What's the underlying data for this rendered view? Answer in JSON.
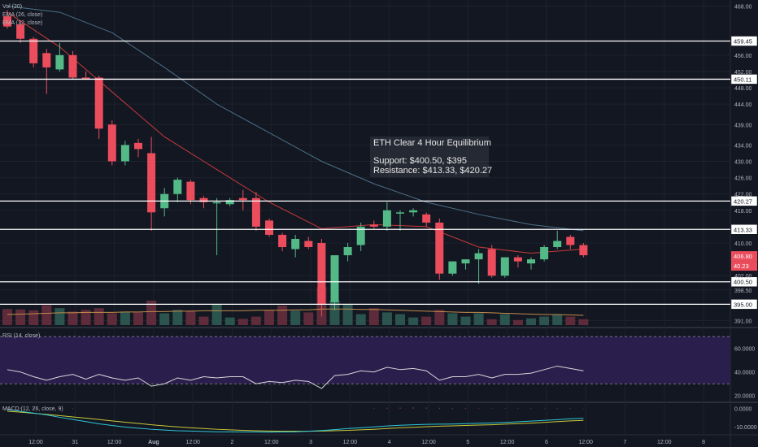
{
  "legends": {
    "vol": "Vol (20)",
    "ema26": "EMA (26, close)",
    "ema12": "EMA (12, close)",
    "rsi": "RSI (14, close)",
    "macd": "MACD (12, 26, close, 9)"
  },
  "annotation": {
    "title": "ETH Clear 4 Hour Equilibrium",
    "support": "Support: $400.50, $395",
    "resistance": "Resistance: $413.33, $420.27"
  },
  "colors": {
    "background": "#131722",
    "up": "#53b987",
    "down": "#eb4d5c",
    "ema12": "#c53a3a",
    "ema26": "#4a6f86",
    "vol_ma": "#c28a4a",
    "rsi_line": "#d8d8d8",
    "rsi_fill": "#2d1f52",
    "macd": "#2ec7d9",
    "signal": "#c9c83b",
    "hline": "#ffffff"
  },
  "chart_data": {
    "type": "candlestick",
    "timeframe": "4h",
    "x_ticks": [
      "12:00",
      "31",
      "12:00",
      "Aug",
      "12:00",
      "2",
      "12:00",
      "3",
      "12:00",
      "4",
      "12:00",
      "5",
      "12:00",
      "6",
      "12:00",
      "7",
      "12:00",
      "8"
    ],
    "price_ticks": [
      "468.00",
      "456.00",
      "452.00",
      "448.00",
      "444.00",
      "439.00",
      "434.00",
      "430.00",
      "426.00",
      "422.00",
      "418.00",
      "410.00",
      "402.00",
      "398.50",
      "391.00"
    ],
    "price_ylim": [
      389.5,
      469.5
    ],
    "candles": [
      {
        "o": 465.5,
        "h": 467.0,
        "l": 462.5,
        "c": 463.0
      },
      {
        "o": 463.5,
        "h": 464.5,
        "l": 459.0,
        "c": 460.0
      },
      {
        "o": 460.0,
        "h": 460.5,
        "l": 453.0,
        "c": 454.0
      },
      {
        "o": 456.5,
        "h": 457.5,
        "l": 446.5,
        "c": 453.0
      },
      {
        "o": 452.5,
        "h": 459.0,
        "l": 452.0,
        "c": 456.0
      },
      {
        "o": 456.0,
        "h": 457.0,
        "l": 450.0,
        "c": 450.5
      },
      {
        "o": 450.5,
        "h": 452.0,
        "l": 450.0,
        "c": 450.0
      },
      {
        "o": 450.5,
        "h": 451.0,
        "l": 435.5,
        "c": 438.0
      },
      {
        "o": 439.0,
        "h": 440.0,
        "l": 429.0,
        "c": 430.0
      },
      {
        "o": 430.0,
        "h": 435.0,
        "l": 429.0,
        "c": 434.0
      },
      {
        "o": 434.5,
        "h": 435.5,
        "l": 431.0,
        "c": 433.0
      },
      {
        "o": 432.0,
        "h": 436.0,
        "l": 413.0,
        "c": 417.5
      },
      {
        "o": 418.5,
        "h": 423.5,
        "l": 416.5,
        "c": 422.0
      },
      {
        "o": 422.0,
        "h": 426.0,
        "l": 420.0,
        "c": 425.5
      },
      {
        "o": 425.0,
        "h": 425.5,
        "l": 419.5,
        "c": 420.5
      },
      {
        "o": 421.0,
        "h": 421.5,
        "l": 418.5,
        "c": 420.0
      },
      {
        "o": 420.0,
        "h": 421.0,
        "l": 407.0,
        "c": 420.0
      },
      {
        "o": 419.5,
        "h": 421.0,
        "l": 419.0,
        "c": 420.5
      },
      {
        "o": 421.0,
        "h": 423.0,
        "l": 418.0,
        "c": 420.5
      },
      {
        "o": 421.0,
        "h": 422.5,
        "l": 413.0,
        "c": 414.0
      },
      {
        "o": 415.5,
        "h": 416.0,
        "l": 411.5,
        "c": 412.0
      },
      {
        "o": 412.0,
        "h": 412.5,
        "l": 408.0,
        "c": 409.0
      },
      {
        "o": 408.5,
        "h": 412.0,
        "l": 406.5,
        "c": 411.0
      },
      {
        "o": 410.5,
        "h": 411.5,
        "l": 408.5,
        "c": 409.0
      },
      {
        "o": 410.0,
        "h": 411.0,
        "l": 392.0,
        "c": 395.0
      },
      {
        "o": 395.5,
        "h": 407.0,
        "l": 393.5,
        "c": 407.0
      },
      {
        "o": 407.0,
        "h": 410.0,
        "l": 405.5,
        "c": 409.0
      },
      {
        "o": 409.5,
        "h": 415.0,
        "l": 408.0,
        "c": 414.0
      },
      {
        "o": 414.5,
        "h": 415.5,
        "l": 413.5,
        "c": 414.0
      },
      {
        "o": 414.0,
        "h": 420.0,
        "l": 413.0,
        "c": 418.0
      },
      {
        "o": 417.5,
        "h": 418.0,
        "l": 413.0,
        "c": 417.5
      },
      {
        "o": 417.5,
        "h": 418.5,
        "l": 416.5,
        "c": 418.0
      },
      {
        "o": 417.0,
        "h": 417.5,
        "l": 414.0,
        "c": 415.0
      },
      {
        "o": 415.0,
        "h": 416.0,
        "l": 401.0,
        "c": 402.5
      },
      {
        "o": 402.5,
        "h": 405.5,
        "l": 402.0,
        "c": 405.5
      },
      {
        "o": 405.0,
        "h": 406.0,
        "l": 403.5,
        "c": 406.0
      },
      {
        "o": 406.0,
        "h": 408.5,
        "l": 400.0,
        "c": 407.5
      },
      {
        "o": 408.5,
        "h": 409.5,
        "l": 401.5,
        "c": 402.0
      },
      {
        "o": 402.0,
        "h": 406.5,
        "l": 401.5,
        "c": 406.5
      },
      {
        "o": 406.5,
        "h": 407.0,
        "l": 404.0,
        "c": 405.5
      },
      {
        "o": 405.0,
        "h": 406.5,
        "l": 403.5,
        "c": 406.0
      },
      {
        "o": 406.0,
        "h": 409.5,
        "l": 405.5,
        "c": 409.0
      },
      {
        "o": 409.0,
        "h": 413.0,
        "l": 408.5,
        "c": 410.5
      },
      {
        "o": 411.5,
        "h": 412.0,
        "l": 408.5,
        "c": 409.5
      },
      {
        "o": 409.5,
        "h": 410.0,
        "l": 406.5,
        "c": 407.0
      }
    ],
    "ema12": [
      [
        0,
        466.5
      ],
      [
        4,
        458.0
      ],
      [
        8,
        447.0
      ],
      [
        12,
        436.0
      ],
      [
        16,
        428.0
      ],
      [
        20,
        420.0
      ],
      [
        24,
        413.5
      ],
      [
        28,
        414.5
      ],
      [
        32,
        414.0
      ],
      [
        36,
        409.0
      ],
      [
        40,
        407.5
      ],
      [
        44,
        408.5
      ]
    ],
    "ema26": [
      [
        0,
        468.0
      ],
      [
        4,
        466.5
      ],
      [
        8,
        461.5
      ],
      [
        12,
        453.0
      ],
      [
        16,
        444.0
      ],
      [
        20,
        437.0
      ],
      [
        24,
        430.0
      ],
      [
        28,
        424.5
      ],
      [
        32,
        420.0
      ],
      [
        36,
        417.0
      ],
      [
        40,
        414.5
      ],
      [
        44,
        413.0
      ]
    ],
    "volume": [
      38,
      37,
      35,
      47,
      40,
      32,
      36,
      40,
      28,
      32,
      30,
      58,
      28,
      36,
      34,
      20,
      48,
      18,
      15,
      20,
      36,
      46,
      34,
      30,
      90,
      58,
      48,
      26,
      40,
      30,
      26,
      18,
      20,
      36,
      28,
      20,
      28,
      14,
      26,
      12,
      16,
      20,
      25,
      20,
      14
    ],
    "volume_ma": [
      25,
      26,
      27,
      28,
      29,
      29,
      30,
      30,
      30,
      31,
      31,
      32,
      32,
      33,
      33,
      34,
      34,
      34,
      34,
      35,
      35,
      35,
      36,
      36,
      38,
      38,
      38,
      37,
      37,
      36,
      35,
      34,
      33,
      32,
      31,
      30,
      30,
      29,
      28,
      27,
      26,
      25,
      25,
      24,
      23
    ],
    "horizontal_levels": [
      {
        "value": 459.45,
        "label": "459.45"
      },
      {
        "value": 450.11,
        "label": "450.11"
      },
      {
        "value": 420.27,
        "label": "420.27"
      },
      {
        "value": 413.33,
        "label": "413.33"
      },
      {
        "value": 400.5,
        "label": "400.50"
      },
      {
        "value": 395.0,
        "label": "395.00"
      }
    ],
    "last_price": {
      "value": 406.8,
      "label": "406.80"
    },
    "last_volume_label": "40.23",
    "rsi": {
      "ticks": [
        "60.0000",
        "40.0000",
        "20.0000"
      ],
      "ylim": [
        15,
        77
      ],
      "bands": [
        70,
        30
      ],
      "values": [
        42,
        40,
        36,
        33,
        36,
        38,
        34,
        38,
        35,
        33,
        35,
        28,
        30,
        35,
        33,
        36,
        35,
        36,
        36,
        30,
        32,
        31,
        33,
        32,
        26,
        37,
        38,
        41,
        40,
        44,
        42,
        43,
        41,
        33,
        36,
        36,
        38,
        35,
        38,
        38,
        39,
        42,
        45,
        43,
        41
      ]
    },
    "macd": {
      "ticks": [
        "0.0000",
        "-10.0000"
      ],
      "ylim": [
        -14,
        3
      ],
      "macd": [
        -0.5,
        -1.5,
        -2.5,
        -3.5,
        -4.8,
        -6.0,
        -7.2,
        -8.4,
        -9.3,
        -10.2,
        -10.8,
        -11.4,
        -11.8,
        -12.2,
        -12.4,
        -12.6,
        -12.8,
        -12.8,
        -12.9,
        -12.9,
        -13.0,
        -12.9,
        -12.8,
        -12.5,
        -12.1,
        -11.6,
        -11.0,
        -10.6,
        -10.1,
        -9.6,
        -9.2,
        -8.9,
        -8.7,
        -8.6,
        -8.5,
        -8.3,
        -8.1,
        -7.9,
        -7.6,
        -7.3,
        -6.9,
        -6.5,
        -6.1,
        -5.6,
        -5.4
      ],
      "signal": [
        -1.5,
        -2.0,
        -2.6,
        -3.2,
        -3.9,
        -4.6,
        -5.3,
        -6.0,
        -6.8,
        -7.5,
        -8.2,
        -8.9,
        -9.5,
        -10.1,
        -10.6,
        -11.0,
        -11.4,
        -11.7,
        -12.0,
        -12.2,
        -12.4,
        -12.5,
        -12.5,
        -12.5,
        -12.4,
        -12.2,
        -12.0,
        -11.7,
        -11.4,
        -11.0,
        -10.6,
        -10.3,
        -10.0,
        -9.7,
        -9.5,
        -9.3,
        -9.1,
        -8.9,
        -8.6,
        -8.3,
        -8.0,
        -7.6,
        -7.2,
        -6.8,
        -6.5
      ],
      "hist": [
        0.6,
        0.5,
        0.4,
        0.3,
        0.2,
        0.2,
        0.1,
        0,
        0,
        0,
        0,
        0,
        0,
        0,
        0,
        0,
        0,
        0,
        0,
        0,
        0,
        0,
        0,
        0,
        0,
        0,
        0,
        0,
        0.2,
        0.4,
        0.5,
        0.6,
        0.5,
        0.4,
        0.3,
        0.3,
        0.2,
        0.2,
        0.2,
        0.2,
        0.2,
        0.2,
        0.2,
        0.2,
        0.1
      ]
    }
  }
}
